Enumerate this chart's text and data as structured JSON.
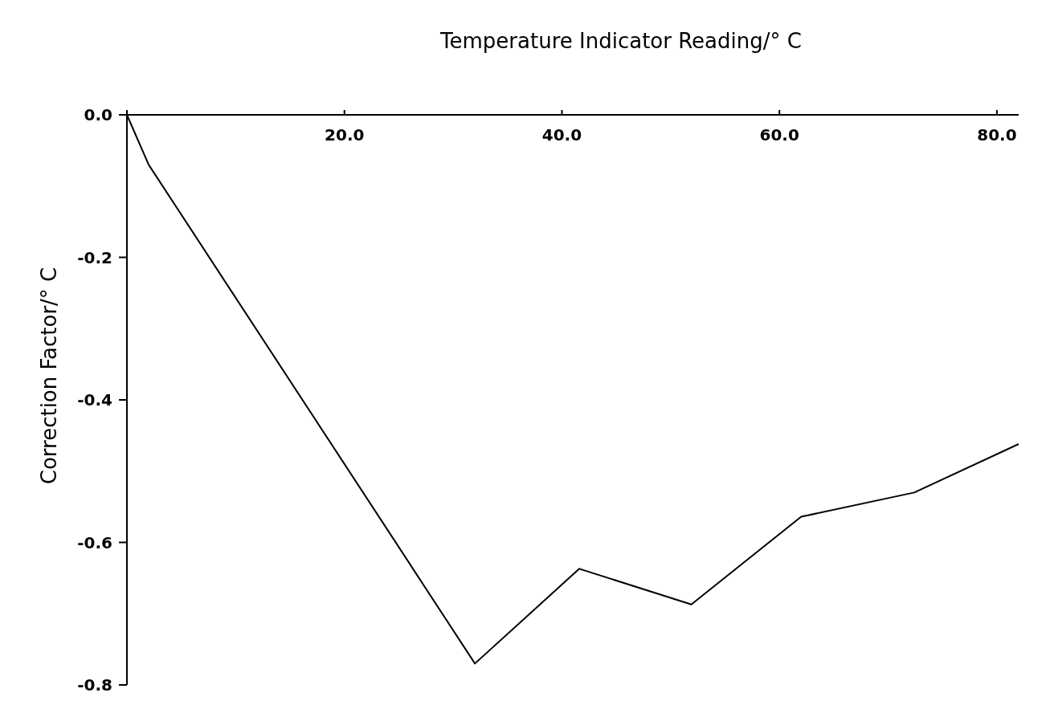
{
  "chart_data": {
    "type": "line",
    "xlabel": "Temperature Indicator Reading/° C",
    "ylabel": "Correction Factor/° C",
    "x": [
      0,
      2,
      32,
      41.6,
      51.9,
      62,
      72.4,
      82
    ],
    "series": [
      {
        "color": "#000000",
        "values": [
          0,
          -0.07,
          -0.77,
          -0.637,
          -0.687,
          -0.564,
          -0.53,
          -0.462
        ]
      }
    ],
    "xlim": [
      0,
      82
    ],
    "ylim": [
      -0.8,
      0
    ],
    "xticks": [
      {
        "value": 0,
        "label": null
      },
      {
        "value": 20,
        "label": "20.0"
      },
      {
        "value": 40,
        "label": "40.0"
      },
      {
        "value": 60,
        "label": "60.0"
      },
      {
        "value": 80,
        "label": "80.0"
      }
    ],
    "yticks": [
      {
        "value": 0,
        "label": "0.0"
      },
      {
        "value": -0.2,
        "label": "-0.2"
      },
      {
        "value": -0.4,
        "label": "-0.4"
      },
      {
        "value": -0.6,
        "label": "-0.6"
      },
      {
        "value": -0.8,
        "label": "-0.8"
      }
    ],
    "grid": false,
    "marker": "none",
    "line_style": "solid"
  }
}
